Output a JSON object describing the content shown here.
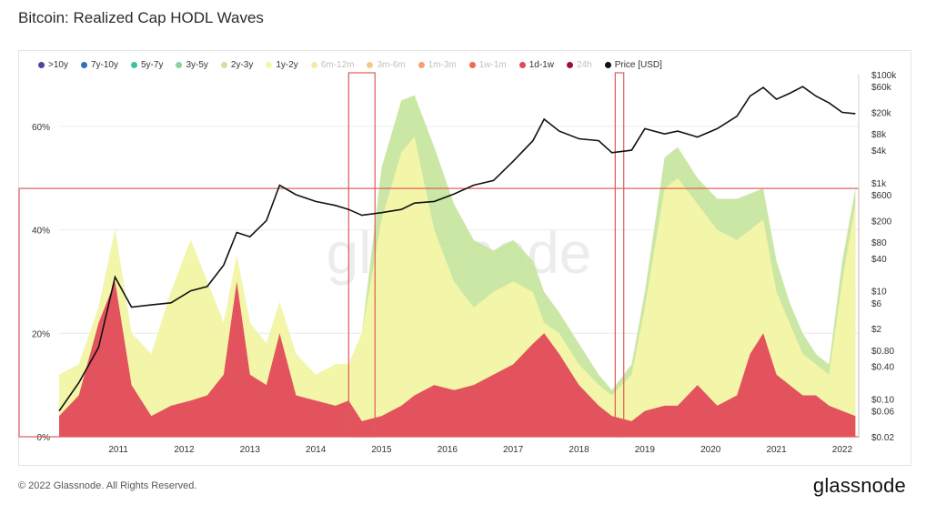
{
  "title": "Bitcoin: Realized Cap HODL Waves",
  "footer": "© 2022 Glassnode. All Rights Reserved.",
  "logo": "glassnode",
  "watermark": "glassnode",
  "chart_data": {
    "type": "area",
    "stacked": true,
    "title": "Bitcoin: Realized Cap HODL Waves",
    "legend_position": "top",
    "grid": true,
    "x_ticks": [
      "2011",
      "2012",
      "2013",
      "2014",
      "2015",
      "2016",
      "2017",
      "2018",
      "2019",
      "2020",
      "2021",
      "2022"
    ],
    "y_left": {
      "ticks": [
        "0%",
        "20%",
        "40%",
        "60%"
      ],
      "ylim": [
        0,
        70
      ]
    },
    "y_right": {
      "scale": "log",
      "ticks": [
        "$100k",
        "$60k",
        "$20k",
        "$8k",
        "$4k",
        "$1k",
        "$600",
        "$200",
        "$80",
        "$40",
        "$10",
        "$6",
        "$2",
        "$0.80",
        "$0.40",
        "$0.10",
        "$0.06",
        "$0.02"
      ],
      "ylim": [
        0.02,
        100000
      ]
    },
    "legend": [
      {
        "label": ">10y",
        "color": "#5b3fa0",
        "faded": false
      },
      {
        "label": "7y-10y",
        "color": "#2e74b5",
        "faded": false
      },
      {
        "label": "5y-7y",
        "color": "#3fbfa8",
        "faded": false
      },
      {
        "label": "3y-5y",
        "color": "#8fd19e",
        "faded": false
      },
      {
        "label": "2y-3y",
        "color": "#c8e6a0",
        "faded": false
      },
      {
        "label": "1y-2y",
        "color": "#f4f6a8",
        "faded": false
      },
      {
        "label": "6m-12m",
        "color": "#f8e8a8",
        "faded": true
      },
      {
        "label": "3m-6m",
        "color": "#f6c98a",
        "faded": true
      },
      {
        "label": "1m-3m",
        "color": "#f6a070",
        "faded": true
      },
      {
        "label": "1w-1m",
        "color": "#f06a50",
        "faded": true
      },
      {
        "label": "1d-1w",
        "color": "#e04a5a",
        "faded": false
      },
      {
        "label": "24h",
        "color": "#9a1040",
        "faded": true
      },
      {
        "label": "Price [USD]",
        "color": "#111111",
        "faded": false
      }
    ],
    "x": [
      2010.6,
      2010.9,
      2011.2,
      2011.45,
      2011.7,
      2012.0,
      2012.3,
      2012.6,
      2012.85,
      2013.1,
      2013.3,
      2013.5,
      2013.75,
      2013.95,
      2014.2,
      2014.5,
      2014.8,
      2015.0,
      2015.2,
      2015.5,
      2015.8,
      2016.0,
      2016.3,
      2016.6,
      2016.9,
      2017.2,
      2017.5,
      2017.8,
      2017.97,
      2018.2,
      2018.5,
      2018.8,
      2019.0,
      2019.3,
      2019.5,
      2019.8,
      2020.0,
      2020.3,
      2020.6,
      2020.9,
      2021.1,
      2021.3,
      2021.5,
      2021.7,
      2021.9,
      2022.1,
      2022.3,
      2022.5,
      2022.7
    ],
    "series": [
      {
        "name": "1d-1w",
        "color": "#e04a5a",
        "values": [
          4,
          8,
          22,
          30,
          10,
          4,
          6,
          7,
          8,
          12,
          30,
          12,
          10,
          20,
          8,
          7,
          6,
          7,
          3,
          4,
          6,
          8,
          10,
          9,
          10,
          12,
          14,
          18,
          20,
          16,
          10,
          6,
          4,
          3,
          5,
          6,
          6,
          10,
          6,
          8,
          16,
          20,
          12,
          10,
          8,
          8,
          6,
          5,
          4
        ]
      },
      {
        "name": "1y-2y",
        "color": "#f4f6a8",
        "values": [
          12,
          14,
          25,
          40,
          20,
          16,
          28,
          38,
          30,
          22,
          35,
          22,
          18,
          26,
          16,
          12,
          14,
          14,
          20,
          42,
          55,
          58,
          40,
          30,
          25,
          28,
          30,
          28,
          22,
          20,
          14,
          10,
          8,
          12,
          25,
          48,
          50,
          45,
          40,
          38,
          40,
          42,
          28,
          22,
          16,
          14,
          12,
          30,
          45
        ]
      },
      {
        "name": "2y-3y",
        "color": "#c8e6a0",
        "values": [
          12,
          14,
          25,
          40,
          20,
          16,
          28,
          38,
          30,
          22,
          35,
          22,
          18,
          26,
          16,
          12,
          14,
          14,
          20,
          52,
          65,
          66,
          56,
          45,
          38,
          36,
          38,
          34,
          28,
          24,
          18,
          12,
          9,
          14,
          28,
          54,
          56,
          50,
          46,
          46,
          47,
          48,
          34,
          26,
          20,
          16,
          14,
          34,
          48
        ]
      }
    ],
    "price": [
      0.06,
      0.2,
      0.9,
      18,
      5,
      5.5,
      6,
      10,
      12,
      30,
      120,
      100,
      200,
      900,
      600,
      450,
      380,
      320,
      250,
      280,
      320,
      420,
      450,
      620,
      900,
      1100,
      2500,
      6000,
      15000,
      9000,
      6500,
      6000,
      3600,
      4000,
      10000,
      8000,
      9000,
      7000,
      10000,
      17000,
      40000,
      58000,
      35000,
      45000,
      60000,
      40000,
      30000,
      20000,
      19000
    ],
    "highlights": [
      {
        "from": 2015.0,
        "to": 2015.4
      },
      {
        "from": 2019.05,
        "to": 2019.18
      }
    ],
    "highlight_band_y": [
      0,
      48
    ]
  }
}
